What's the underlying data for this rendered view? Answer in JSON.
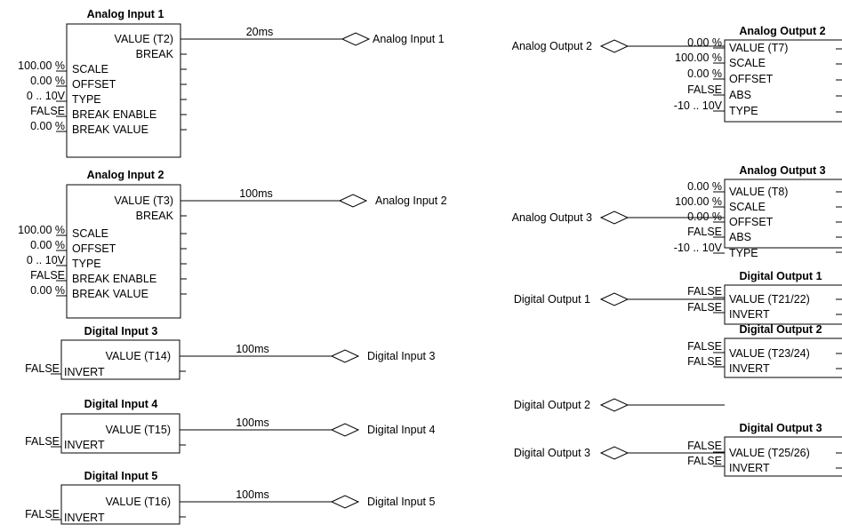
{
  "inputs": [
    {
      "title": "Analog Input 1",
      "outputs": [
        "VALUE (T2)",
        "BREAK"
      ],
      "params": [
        {
          "name": "SCALE",
          "value": "100.00 %"
        },
        {
          "name": "OFFSET",
          "value": "0.00 %"
        },
        {
          "name": "TYPE",
          "value": "0 .. 10V"
        },
        {
          "name": "BREAK ENABLE",
          "value": "FALSE"
        },
        {
          "name": "BREAK VALUE",
          "value": "0.00 %"
        }
      ],
      "link_rate": "20ms",
      "connector": "Analog Input 1"
    },
    {
      "title": "Analog Input 2",
      "outputs": [
        "VALUE (T3)",
        "BREAK"
      ],
      "params": [
        {
          "name": "SCALE",
          "value": "100.00 %"
        },
        {
          "name": "OFFSET",
          "value": "0.00 %"
        },
        {
          "name": "TYPE",
          "value": "0 .. 10V"
        },
        {
          "name": "BREAK ENABLE",
          "value": "FALSE"
        },
        {
          "name": "BREAK VALUE",
          "value": "0.00 %"
        }
      ],
      "link_rate": "100ms",
      "connector": "Analog Input 2"
    },
    {
      "title": "Digital Input 3",
      "outputs": [
        "VALUE (T14)"
      ],
      "params": [
        {
          "name": "INVERT",
          "value": "FALSE"
        }
      ],
      "link_rate": "100ms",
      "connector": "Digital Input 3"
    },
    {
      "title": "Digital Input 4",
      "outputs": [
        "VALUE (T15)"
      ],
      "params": [
        {
          "name": "INVERT",
          "value": "FALSE"
        }
      ],
      "link_rate": "100ms",
      "connector": "Digital Input 4"
    },
    {
      "title": "Digital Input 5",
      "outputs": [
        "VALUE (T16)"
      ],
      "params": [
        {
          "name": "INVERT",
          "value": "FALSE"
        }
      ],
      "link_rate": "100ms",
      "connector": "Digital Input 5"
    }
  ],
  "outputs": [
    {
      "title": "Analog Output 2",
      "connector": "Analog Output 2",
      "params": [
        {
          "name": "VALUE (T7)",
          "value": "0.00 %"
        },
        {
          "name": "SCALE",
          "value": "100.00 %"
        },
        {
          "name": "OFFSET",
          "value": "0.00 %"
        },
        {
          "name": "ABS",
          "value": "FALSE"
        },
        {
          "name": "TYPE",
          "value": "-10 .. 10V"
        }
      ]
    },
    {
      "title": "Analog Output 3",
      "connector": "Analog Output 3",
      "params": [
        {
          "name": "VALUE (T8)",
          "value": "0.00 %"
        },
        {
          "name": "SCALE",
          "value": "100.00 %"
        },
        {
          "name": "OFFSET",
          "value": "0.00 %"
        },
        {
          "name": "ABS",
          "value": "FALSE"
        },
        {
          "name": "TYPE",
          "value": "-10 .. 10V"
        }
      ]
    },
    {
      "title": "Digital Output 1",
      "connector": "Digital Output 1",
      "params": [
        {
          "name": "VALUE (T21/22)",
          "value": "FALSE"
        },
        {
          "name": "INVERT",
          "value": "FALSE"
        }
      ]
    },
    {
      "title": "Digital Output 2",
      "connector": "Digital Output 2",
      "params": [
        {
          "name": "VALUE (T23/24)",
          "value": "FALSE"
        },
        {
          "name": "INVERT",
          "value": "FALSE"
        }
      ]
    },
    {
      "title": "Digital Output 3",
      "connector": "Digital Output 3",
      "params": [
        {
          "name": "VALUE (T25/26)",
          "value": "FALSE"
        },
        {
          "name": "INVERT",
          "value": "FALSE"
        }
      ]
    }
  ]
}
